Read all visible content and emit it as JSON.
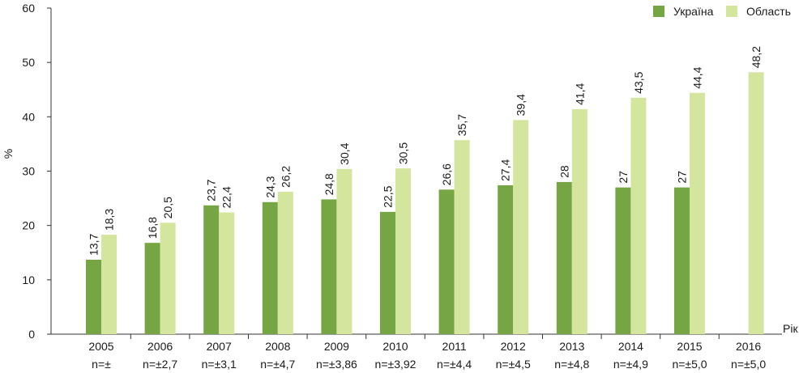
{
  "chart_data": {
    "type": "bar",
    "categories": [
      "2005",
      "2006",
      "2007",
      "2008",
      "2009",
      "2010",
      "2011",
      "2012",
      "2013",
      "2014",
      "2015",
      "2016"
    ],
    "sample_notes": [
      "n=±",
      "n=±2,7",
      "n=±3,1",
      "n=±4,7",
      "n=±3,86",
      "n=±3,92",
      "n=±4,4",
      "n=±4,5",
      "n=±4,8",
      "n=±4,9",
      "n=±5,0",
      "n=±5,0"
    ],
    "series": [
      {
        "name": "Україна",
        "color": "#76a543",
        "values": [
          13.7,
          16.8,
          23.7,
          24.3,
          24.8,
          22.5,
          26.6,
          27.4,
          28,
          27,
          27,
          null
        ],
        "labels": [
          "13,7",
          "16,8",
          "23,7",
          "24,3",
          "24,8",
          "22,5",
          "26,6",
          "27,4",
          "28",
          "27",
          "27",
          ""
        ]
      },
      {
        "name": "Область",
        "color": "#d4e59d",
        "values": [
          18.3,
          20.5,
          22.4,
          26.2,
          30.4,
          30.5,
          35.7,
          39.4,
          41.4,
          43.5,
          44.4,
          48.2
        ],
        "labels": [
          "18,3",
          "20,5",
          "22,4",
          "26,2",
          "30,4",
          "30,5",
          "35,7",
          "39,4",
          "41,4",
          "43,5",
          "44,4",
          "48,2"
        ]
      }
    ],
    "ylabel": "%",
    "xlabel": "Рік",
    "ylim": [
      0,
      60
    ],
    "yticks": [
      0,
      10,
      20,
      30,
      40,
      50,
      60
    ],
    "grid": false,
    "legend_position": "top-right"
  }
}
